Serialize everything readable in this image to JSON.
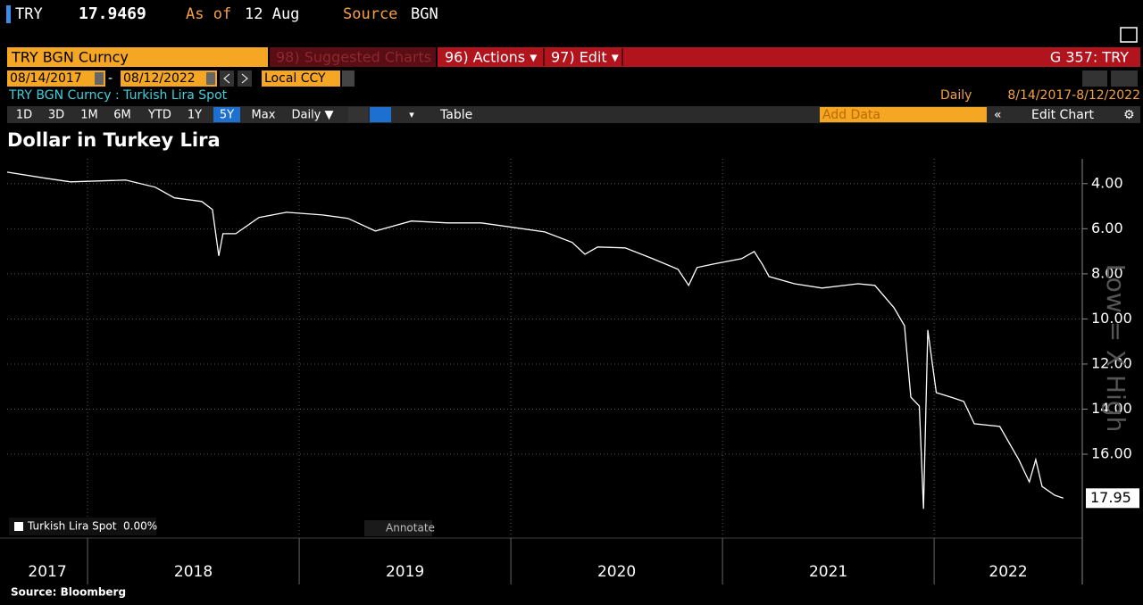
{
  "header": {
    "ticker": "TRY",
    "price": "17.9469",
    "as_of_label": "As of",
    "as_of": "12 Aug",
    "source_label": "Source",
    "source": "BGN"
  },
  "toolbar": {
    "security": "TRY BGN Curncy",
    "suggested": "98) Suggested Charts",
    "actions": "96) Actions ▾",
    "edit": "97) Edit ▾",
    "function": "G 357: TRY",
    "start_date": "08/14/2017",
    "end_date": "08/12/2022",
    "currency": "Local CCY",
    "description": "TRY BGN Curncy : Turkish Lira Spot",
    "frequency": "Daily",
    "range": "8/14/2017-8/12/2022",
    "periods": [
      "1D",
      "3D",
      "1M",
      "6M",
      "YTD",
      "1Y",
      "5Y",
      "Max",
      "Daily ▼"
    ],
    "table": "Table",
    "add_data": "Add Data",
    "edit_chart": "Edit Chart",
    "annotate": "Annotate"
  },
  "chart_data": {
    "type": "line",
    "title": "Dollar in Turkey Lira",
    "ylabel": "Low = X High",
    "source": "Source: Bloomberg",
    "y_inverted": true,
    "grid": true,
    "legend": "bottom-left",
    "xlim": [
      2017.62,
      2022.7
    ],
    "xticks": [
      2017,
      2018,
      2019,
      2020,
      2021,
      2022
    ],
    "ylim": [
      2.9,
      19.6
    ],
    "yticks": [
      {
        "value": 4,
        "label": "4.00"
      },
      {
        "value": 6,
        "label": "6.00"
      },
      {
        "value": 8,
        "label": "8.00"
      },
      {
        "value": 10,
        "label": "10.00"
      },
      {
        "value": 12,
        "label": "12.00"
      },
      {
        "value": 14,
        "label": "14.00"
      },
      {
        "value": 16,
        "label": "16.00"
      }
    ],
    "series": [
      {
        "name": "Turkish Lira Spot",
        "change": "0.00%",
        "color": "#ffffff",
        "x": [
          2017.62,
          2017.8,
          2017.92,
          2018.18,
          2018.32,
          2018.41,
          2018.54,
          2018.59,
          2018.62,
          2018.64,
          2018.7,
          2018.81,
          2018.94,
          2019.11,
          2019.23,
          2019.36,
          2019.53,
          2019.7,
          2019.86,
          2020.01,
          2020.16,
          2020.29,
          2020.35,
          2020.41,
          2020.54,
          2020.67,
          2020.79,
          2020.84,
          2020.88,
          2020.96,
          2021.09,
          2021.15,
          2021.19,
          2021.22,
          2021.34,
          2021.47,
          2021.64,
          2021.72,
          2021.81,
          2021.86,
          2021.89,
          2021.93,
          2021.95,
          2021.97,
          2022.01,
          2022.08,
          2022.14,
          2022.19,
          2022.31,
          2022.4,
          2022.45,
          2022.48,
          2022.51,
          2022.57,
          2022.61
        ],
        "values": [
          3.49,
          3.76,
          3.92,
          3.84,
          4.16,
          4.63,
          4.79,
          5.15,
          7.2,
          6.22,
          6.22,
          5.5,
          5.27,
          5.39,
          5.54,
          6.1,
          5.66,
          5.74,
          5.74,
          5.94,
          6.14,
          6.61,
          7.13,
          6.81,
          6.85,
          7.33,
          7.8,
          8.51,
          7.72,
          7.56,
          7.33,
          7.01,
          7.6,
          8.12,
          8.44,
          8.63,
          8.44,
          8.51,
          9.5,
          10.3,
          13.47,
          13.86,
          18.42,
          10.49,
          13.27,
          13.47,
          13.66,
          14.65,
          14.77,
          16.24,
          17.23,
          16.24,
          17.43,
          17.82,
          17.95
        ]
      }
    ]
  }
}
